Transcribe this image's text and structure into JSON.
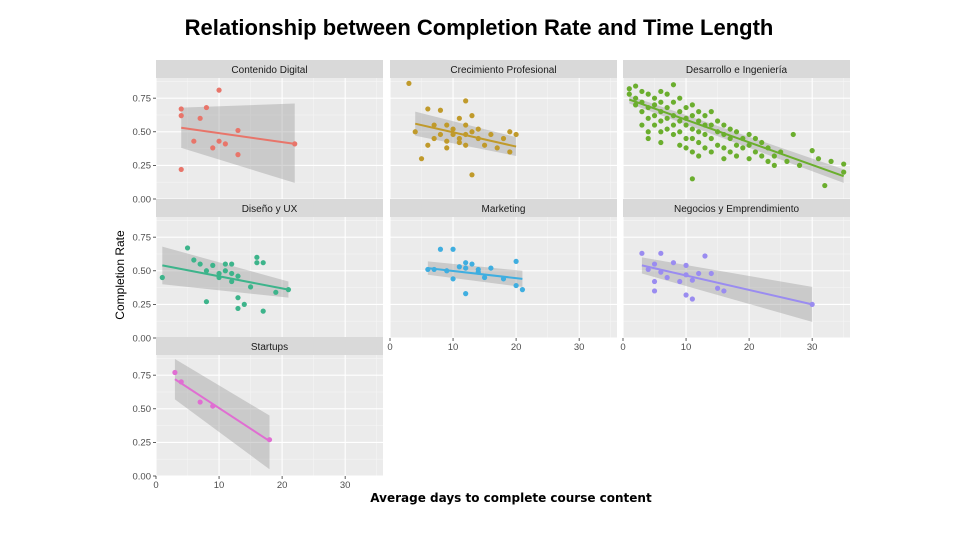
{
  "chart_data": {
    "type": "scatter",
    "title": "Relationship between Completion Rate and Time Length",
    "xlabel": "Average days to complete course content",
    "ylabel": "Completion Rate",
    "xlim": [
      0,
      36
    ],
    "ylim": [
      0,
      0.9
    ],
    "x_ticks": [
      0,
      10,
      20,
      30
    ],
    "y_ticks": [
      0,
      0.25,
      0.5,
      0.75
    ],
    "y_tick_labels": [
      "0.00",
      "0.25",
      "0.50",
      "0.75"
    ],
    "x_tick_labels": [
      "0",
      "10",
      "20",
      "30"
    ],
    "grid": true,
    "trend": "linear fit with confidence band",
    "panels": [
      {
        "name": "Contenido Digital",
        "color": "#E8756A",
        "points": [
          [
            4,
            0.22
          ],
          [
            4,
            0.62
          ],
          [
            4,
            0.67
          ],
          [
            6,
            0.43
          ],
          [
            7,
            0.6
          ],
          [
            8,
            0.68
          ],
          [
            9,
            0.38
          ],
          [
            10,
            0.81
          ],
          [
            10,
            0.43
          ],
          [
            11,
            0.41
          ],
          [
            13,
            0.51
          ],
          [
            13,
            0.33
          ],
          [
            22,
            0.41
          ]
        ],
        "fit": {
          "x": [
            4,
            22
          ],
          "y": [
            0.53,
            0.41
          ]
        },
        "band": {
          "upper": [
            0.68,
            0.71
          ],
          "lower": [
            0.38,
            0.12
          ]
        }
      },
      {
        "name": "Crecimiento Profesional",
        "color": "#C09A2B",
        "points": [
          [
            3,
            0.86
          ],
          [
            4,
            0.5
          ],
          [
            5,
            0.3
          ],
          [
            6,
            0.67
          ],
          [
            6,
            0.4
          ],
          [
            7,
            0.55
          ],
          [
            7,
            0.45
          ],
          [
            8,
            0.48
          ],
          [
            8,
            0.66
          ],
          [
            9,
            0.55
          ],
          [
            9,
            0.43
          ],
          [
            9,
            0.38
          ],
          [
            10,
            0.48
          ],
          [
            10,
            0.52
          ],
          [
            11,
            0.45
          ],
          [
            11,
            0.6
          ],
          [
            11,
            0.42
          ],
          [
            12,
            0.55
          ],
          [
            12,
            0.48
          ],
          [
            12,
            0.73
          ],
          [
            12,
            0.4
          ],
          [
            13,
            0.5
          ],
          [
            13,
            0.62
          ],
          [
            13,
            0.18
          ],
          [
            14,
            0.52
          ],
          [
            14,
            0.45
          ],
          [
            15,
            0.4
          ],
          [
            16,
            0.48
          ],
          [
            17,
            0.38
          ],
          [
            18,
            0.45
          ],
          [
            19,
            0.5
          ],
          [
            19,
            0.35
          ],
          [
            20,
            0.48
          ]
        ],
        "fit": {
          "x": [
            4,
            20
          ],
          "y": [
            0.56,
            0.39
          ]
        },
        "band": {
          "upper": [
            0.65,
            0.46
          ],
          "lower": [
            0.47,
            0.32
          ]
        }
      },
      {
        "name": "Desarrollo e Ingeniería",
        "color": "#6BAE2E",
        "points": [
          [
            1,
            0.82
          ],
          [
            1,
            0.78
          ],
          [
            2,
            0.84
          ],
          [
            2,
            0.75
          ],
          [
            2,
            0.7
          ],
          [
            3,
            0.8
          ],
          [
            3,
            0.72
          ],
          [
            3,
            0.65
          ],
          [
            3,
            0.55
          ],
          [
            4,
            0.78
          ],
          [
            4,
            0.68
          ],
          [
            4,
            0.6
          ],
          [
            4,
            0.5
          ],
          [
            4,
            0.45
          ],
          [
            5,
            0.75
          ],
          [
            5,
            0.7
          ],
          [
            5,
            0.62
          ],
          [
            5,
            0.55
          ],
          [
            6,
            0.8
          ],
          [
            6,
            0.72
          ],
          [
            6,
            0.65
          ],
          [
            6,
            0.58
          ],
          [
            6,
            0.5
          ],
          [
            6,
            0.42
          ],
          [
            7,
            0.78
          ],
          [
            7,
            0.68
          ],
          [
            7,
            0.6
          ],
          [
            7,
            0.52
          ],
          [
            8,
            0.85
          ],
          [
            8,
            0.72
          ],
          [
            8,
            0.62
          ],
          [
            8,
            0.55
          ],
          [
            8,
            0.48
          ],
          [
            9,
            0.75
          ],
          [
            9,
            0.65
          ],
          [
            9,
            0.58
          ],
          [
            9,
            0.5
          ],
          [
            9,
            0.4
          ],
          [
            10,
            0.68
          ],
          [
            10,
            0.6
          ],
          [
            10,
            0.55
          ],
          [
            10,
            0.45
          ],
          [
            10,
            0.38
          ],
          [
            11,
            0.7
          ],
          [
            11,
            0.62
          ],
          [
            11,
            0.52
          ],
          [
            11,
            0.45
          ],
          [
            11,
            0.35
          ],
          [
            11,
            0.15
          ],
          [
            12,
            0.65
          ],
          [
            12,
            0.58
          ],
          [
            12,
            0.5
          ],
          [
            12,
            0.42
          ],
          [
            12,
            0.32
          ],
          [
            13,
            0.62
          ],
          [
            13,
            0.55
          ],
          [
            13,
            0.48
          ],
          [
            13,
            0.38
          ],
          [
            14,
            0.65
          ],
          [
            14,
            0.55
          ],
          [
            14,
            0.45
          ],
          [
            14,
            0.35
          ],
          [
            15,
            0.58
          ],
          [
            15,
            0.5
          ],
          [
            15,
            0.4
          ],
          [
            16,
            0.55
          ],
          [
            16,
            0.48
          ],
          [
            16,
            0.38
          ],
          [
            16,
            0.3
          ],
          [
            17,
            0.52
          ],
          [
            17,
            0.45
          ],
          [
            17,
            0.35
          ],
          [
            18,
            0.5
          ],
          [
            18,
            0.4
          ],
          [
            18,
            0.32
          ],
          [
            19,
            0.45
          ],
          [
            19,
            0.38
          ],
          [
            20,
            0.48
          ],
          [
            20,
            0.4
          ],
          [
            20,
            0.3
          ],
          [
            21,
            0.45
          ],
          [
            21,
            0.35
          ],
          [
            22,
            0.42
          ],
          [
            22,
            0.32
          ],
          [
            23,
            0.38
          ],
          [
            23,
            0.28
          ],
          [
            24,
            0.32
          ],
          [
            24,
            0.25
          ],
          [
            25,
            0.35
          ],
          [
            26,
            0.28
          ],
          [
            27,
            0.48
          ],
          [
            28,
            0.25
          ],
          [
            30,
            0.36
          ],
          [
            31,
            0.3
          ],
          [
            32,
            0.1
          ],
          [
            33,
            0.28
          ],
          [
            35,
            0.26
          ],
          [
            35,
            0.2
          ]
        ],
        "fit": {
          "x": [
            1,
            35
          ],
          "y": [
            0.74,
            0.17
          ]
        },
        "band": {
          "upper": [
            0.77,
            0.22
          ],
          "lower": [
            0.71,
            0.12
          ]
        }
      },
      {
        "name": "Diseño y UX",
        "color": "#3DB48B",
        "points": [
          [
            1,
            0.45
          ],
          [
            5,
            0.67
          ],
          [
            6,
            0.58
          ],
          [
            7,
            0.55
          ],
          [
            8,
            0.27
          ],
          [
            8,
            0.5
          ],
          [
            9,
            0.54
          ],
          [
            10,
            0.45
          ],
          [
            10,
            0.48
          ],
          [
            11,
            0.5
          ],
          [
            11,
            0.55
          ],
          [
            12,
            0.42
          ],
          [
            12,
            0.48
          ],
          [
            12,
            0.55
          ],
          [
            13,
            0.46
          ],
          [
            13,
            0.3
          ],
          [
            13,
            0.22
          ],
          [
            14,
            0.25
          ],
          [
            15,
            0.38
          ],
          [
            16,
            0.6
          ],
          [
            16,
            0.56
          ],
          [
            17,
            0.56
          ],
          [
            17,
            0.2
          ],
          [
            19,
            0.34
          ],
          [
            21,
            0.36
          ]
        ],
        "fit": {
          "x": [
            1,
            21
          ],
          "y": [
            0.54,
            0.36
          ]
        },
        "band": {
          "upper": [
            0.68,
            0.42
          ],
          "lower": [
            0.4,
            0.3
          ]
        }
      },
      {
        "name": "Marketing",
        "color": "#3FAEE0",
        "points": [
          [
            6,
            0.51
          ],
          [
            7,
            0.51
          ],
          [
            8,
            0.66
          ],
          [
            9,
            0.5
          ],
          [
            10,
            0.66
          ],
          [
            10,
            0.44
          ],
          [
            11,
            0.53
          ],
          [
            12,
            0.33
          ],
          [
            12,
            0.56
          ],
          [
            12,
            0.52
          ],
          [
            13,
            0.55
          ],
          [
            14,
            0.49
          ],
          [
            14,
            0.51
          ],
          [
            15,
            0.45
          ],
          [
            16,
            0.52
          ],
          [
            18,
            0.44
          ],
          [
            20,
            0.57
          ],
          [
            20,
            0.39
          ],
          [
            21,
            0.36
          ]
        ],
        "fit": {
          "x": [
            6,
            21
          ],
          "y": [
            0.52,
            0.44
          ]
        },
        "band": {
          "upper": [
            0.57,
            0.5
          ],
          "lower": [
            0.47,
            0.38
          ]
        }
      },
      {
        "name": "Negocios y Emprendimiento",
        "color": "#9A8CF0",
        "points": [
          [
            3,
            0.63
          ],
          [
            4,
            0.51
          ],
          [
            5,
            0.42
          ],
          [
            5,
            0.35
          ],
          [
            5,
            0.55
          ],
          [
            6,
            0.63
          ],
          [
            6,
            0.49
          ],
          [
            7,
            0.45
          ],
          [
            8,
            0.56
          ],
          [
            9,
            0.42
          ],
          [
            10,
            0.47
          ],
          [
            10,
            0.54
          ],
          [
            10,
            0.32
          ],
          [
            11,
            0.43
          ],
          [
            11,
            0.29
          ],
          [
            12,
            0.48
          ],
          [
            13,
            0.61
          ],
          [
            14,
            0.48
          ],
          [
            15,
            0.37
          ],
          [
            16,
            0.35
          ],
          [
            30,
            0.25
          ]
        ],
        "fit": {
          "x": [
            3,
            30
          ],
          "y": [
            0.54,
            0.25
          ]
        },
        "band": {
          "upper": [
            0.6,
            0.38
          ],
          "lower": [
            0.48,
            0.12
          ]
        }
      },
      {
        "name": "Startups",
        "color": "#E06ED2",
        "points": [
          [
            3,
            0.77
          ],
          [
            4,
            0.7
          ],
          [
            7,
            0.55
          ],
          [
            9,
            0.52
          ],
          [
            18,
            0.27
          ]
        ],
        "fit": {
          "x": [
            3,
            18
          ],
          "y": [
            0.72,
            0.26
          ]
        },
        "band": {
          "upper": [
            0.87,
            0.45
          ],
          "lower": [
            0.57,
            0.05
          ]
        }
      }
    ]
  }
}
